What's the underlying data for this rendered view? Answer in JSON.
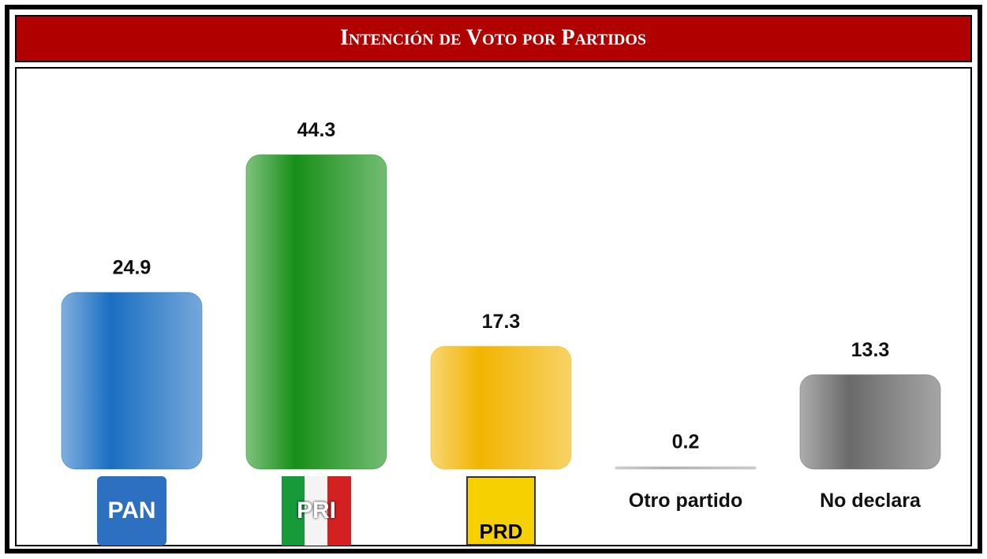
{
  "chart_data": {
    "type": "bar",
    "title": "Intención de Voto por Partidos",
    "categories": [
      "PAN",
      "PRI",
      "PRD",
      "Otro partido",
      "No declara"
    ],
    "values": [
      24.9,
      44.3,
      17.3,
      0.2,
      13.3
    ],
    "colors": [
      "#1a6ec2",
      "#178f17",
      "#f2b400",
      "#b0b0b0",
      "#6a6a6a"
    ]
  }
}
